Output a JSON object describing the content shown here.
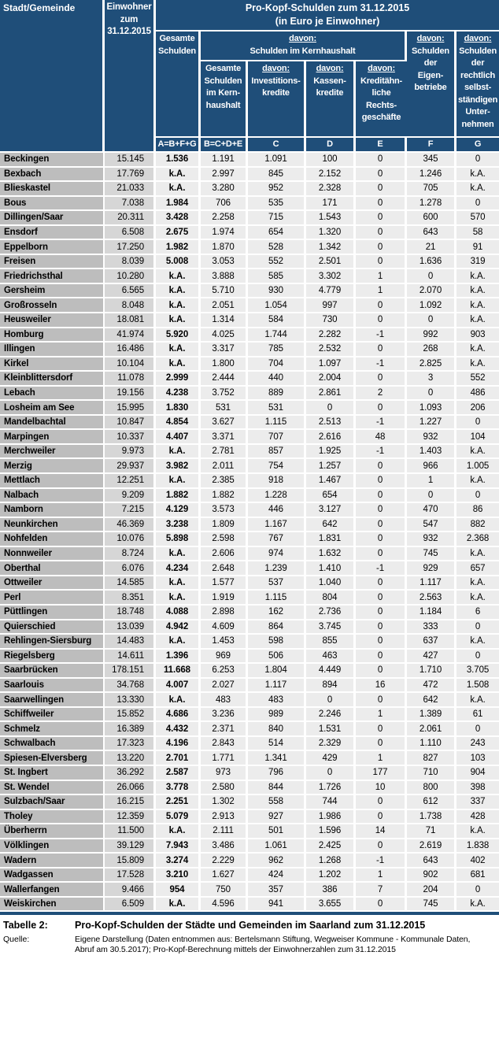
{
  "header": {
    "city": "Stadt/Gemeinde",
    "population": "Einwohner\nzum\n31.12.2015",
    "main_title": "Pro-Kopf-Schulden zum 31.12.2015",
    "main_subtitle": "(in Euro je Einwohner)",
    "davon": "davon:",
    "total": "Gesamte\nSchulden",
    "kernhaushalt_group": "Schulden im Kernhaushalt",
    "kern_total": "Gesamte\nSchulden\nim Kern-\nhaushalt",
    "invest": "Investitions-\nkredite",
    "kassen": "Kassen-\nkredite",
    "kreditaehnlich": "Kreditähn-\nliche Rechts-\ngeschäfte",
    "eigenbetriebe": "Schulden\nder\nEigen-\nbetriebe",
    "selbststaendig": "Schulden\nder\nrechtlich\nselbst-\nständigen\nUnter-\nnehmen",
    "formulas": [
      "A=B+F+G",
      "B=C+D+E",
      "C",
      "D",
      "E",
      "F",
      "G"
    ]
  },
  "rows": [
    {
      "name": "Beckingen",
      "population": "15.145",
      "values": [
        "1.536",
        "1.191",
        "1.091",
        "100",
        "0",
        "345",
        "0"
      ]
    },
    {
      "name": "Bexbach",
      "population": "17.769",
      "values": [
        "k.A.",
        "2.997",
        "845",
        "2.152",
        "0",
        "1.246",
        "k.A."
      ]
    },
    {
      "name": "Blieskastel",
      "population": "21.033",
      "values": [
        "k.A.",
        "3.280",
        "952",
        "2.328",
        "0",
        "705",
        "k.A."
      ]
    },
    {
      "name": "Bous",
      "population": "7.038",
      "values": [
        "1.984",
        "706",
        "535",
        "171",
        "0",
        "1.278",
        "0"
      ]
    },
    {
      "name": "Dillingen/Saar",
      "population": "20.311",
      "values": [
        "3.428",
        "2.258",
        "715",
        "1.543",
        "0",
        "600",
        "570"
      ]
    },
    {
      "name": "Ensdorf",
      "population": "6.508",
      "values": [
        "2.675",
        "1.974",
        "654",
        "1.320",
        "0",
        "643",
        "58"
      ]
    },
    {
      "name": "Eppelborn",
      "population": "17.250",
      "values": [
        "1.982",
        "1.870",
        "528",
        "1.342",
        "0",
        "21",
        "91"
      ]
    },
    {
      "name": "Freisen",
      "population": "8.039",
      "values": [
        "5.008",
        "3.053",
        "552",
        "2.501",
        "0",
        "1.636",
        "319"
      ]
    },
    {
      "name": "Friedrichsthal",
      "population": "10.280",
      "values": [
        "k.A.",
        "3.888",
        "585",
        "3.302",
        "1",
        "0",
        "k.A."
      ]
    },
    {
      "name": "Gersheim",
      "population": "6.565",
      "values": [
        "k.A.",
        "5.710",
        "930",
        "4.779",
        "1",
        "2.070",
        "k.A."
      ]
    },
    {
      "name": "Großrosseln",
      "population": "8.048",
      "values": [
        "k.A.",
        "2.051",
        "1.054",
        "997",
        "0",
        "1.092",
        "k.A."
      ]
    },
    {
      "name": "Heusweiler",
      "population": "18.081",
      "values": [
        "k.A.",
        "1.314",
        "584",
        "730",
        "0",
        "0",
        "k.A."
      ]
    },
    {
      "name": "Homburg",
      "population": "41.974",
      "values": [
        "5.920",
        "4.025",
        "1.744",
        "2.282",
        "-1",
        "992",
        "903"
      ]
    },
    {
      "name": "Illingen",
      "population": "16.486",
      "values": [
        "k.A.",
        "3.317",
        "785",
        "2.532",
        "0",
        "268",
        "k.A."
      ]
    },
    {
      "name": "Kirkel",
      "population": "10.104",
      "values": [
        "k.A.",
        "1.800",
        "704",
        "1.097",
        "-1",
        "2.825",
        "k.A."
      ]
    },
    {
      "name": "Kleinblittersdorf",
      "population": "11.078",
      "values": [
        "2.999",
        "2.444",
        "440",
        "2.004",
        "0",
        "3",
        "552"
      ]
    },
    {
      "name": "Lebach",
      "population": "19.156",
      "values": [
        "4.238",
        "3.752",
        "889",
        "2.861",
        "2",
        "0",
        "486"
      ]
    },
    {
      "name": "Losheim am See",
      "population": "15.995",
      "values": [
        "1.830",
        "531",
        "531",
        "0",
        "0",
        "1.093",
        "206"
      ]
    },
    {
      "name": "Mandelbachtal",
      "population": "10.847",
      "values": [
        "4.854",
        "3.627",
        "1.115",
        "2.513",
        "-1",
        "1.227",
        "0"
      ]
    },
    {
      "name": "Marpingen",
      "population": "10.337",
      "values": [
        "4.407",
        "3.371",
        "707",
        "2.616",
        "48",
        "932",
        "104"
      ]
    },
    {
      "name": "Merchweiler",
      "population": "9.973",
      "values": [
        "k.A.",
        "2.781",
        "857",
        "1.925",
        "-1",
        "1.403",
        "k.A."
      ]
    },
    {
      "name": "Merzig",
      "population": "29.937",
      "values": [
        "3.982",
        "2.011",
        "754",
        "1.257",
        "0",
        "966",
        "1.005"
      ]
    },
    {
      "name": "Mettlach",
      "population": "12.251",
      "values": [
        "k.A.",
        "2.385",
        "918",
        "1.467",
        "0",
        "1",
        "k.A."
      ]
    },
    {
      "name": "Nalbach",
      "population": "9.209",
      "values": [
        "1.882",
        "1.882",
        "1.228",
        "654",
        "0",
        "0",
        "0"
      ]
    },
    {
      "name": "Namborn",
      "population": "7.215",
      "values": [
        "4.129",
        "3.573",
        "446",
        "3.127",
        "0",
        "470",
        "86"
      ]
    },
    {
      "name": "Neunkirchen",
      "population": "46.369",
      "values": [
        "3.238",
        "1.809",
        "1.167",
        "642",
        "0",
        "547",
        "882"
      ]
    },
    {
      "name": "Nohfelden",
      "population": "10.076",
      "values": [
        "5.898",
        "2.598",
        "767",
        "1.831",
        "0",
        "932",
        "2.368"
      ]
    },
    {
      "name": "Nonnweiler",
      "population": "8.724",
      "values": [
        "k.A.",
        "2.606",
        "974",
        "1.632",
        "0",
        "745",
        "k.A."
      ]
    },
    {
      "name": "Oberthal",
      "population": "6.076",
      "values": [
        "4.234",
        "2.648",
        "1.239",
        "1.410",
        "-1",
        "929",
        "657"
      ]
    },
    {
      "name": "Ottweiler",
      "population": "14.585",
      "values": [
        "k.A.",
        "1.577",
        "537",
        "1.040",
        "0",
        "1.117",
        "k.A."
      ]
    },
    {
      "name": "Perl",
      "population": "8.351",
      "values": [
        "k.A.",
        "1.919",
        "1.115",
        "804",
        "0",
        "2.563",
        "k.A."
      ]
    },
    {
      "name": "Püttlingen",
      "population": "18.748",
      "values": [
        "4.088",
        "2.898",
        "162",
        "2.736",
        "0",
        "1.184",
        "6"
      ]
    },
    {
      "name": "Quierschied",
      "population": "13.039",
      "values": [
        "4.942",
        "4.609",
        "864",
        "3.745",
        "0",
        "333",
        "0"
      ]
    },
    {
      "name": "Rehlingen-Siersburg",
      "population": "14.483",
      "values": [
        "k.A.",
        "1.453",
        "598",
        "855",
        "0",
        "637",
        "k.A."
      ]
    },
    {
      "name": "Riegelsberg",
      "population": "14.611",
      "values": [
        "1.396",
        "969",
        "506",
        "463",
        "0",
        "427",
        "0"
      ]
    },
    {
      "name": "Saarbrücken",
      "population": "178.151",
      "values": [
        "11.668",
        "6.253",
        "1.804",
        "4.449",
        "0",
        "1.710",
        "3.705"
      ]
    },
    {
      "name": "Saarlouis",
      "population": "34.768",
      "values": [
        "4.007",
        "2.027",
        "1.117",
        "894",
        "16",
        "472",
        "1.508"
      ]
    },
    {
      "name": "Saarwellingen",
      "population": "13.330",
      "values": [
        "k.A.",
        "483",
        "483",
        "0",
        "0",
        "642",
        "k.A."
      ]
    },
    {
      "name": "Schiffweiler",
      "population": "15.852",
      "values": [
        "4.686",
        "3.236",
        "989",
        "2.246",
        "1",
        "1.389",
        "61"
      ]
    },
    {
      "name": "Schmelz",
      "population": "16.389",
      "values": [
        "4.432",
        "2.371",
        "840",
        "1.531",
        "0",
        "2.061",
        "0"
      ]
    },
    {
      "name": "Schwalbach",
      "population": "17.323",
      "values": [
        "4.196",
        "2.843",
        "514",
        "2.329",
        "0",
        "1.110",
        "243"
      ]
    },
    {
      "name": "Spiesen-Elversberg",
      "population": "13.220",
      "values": [
        "2.701",
        "1.771",
        "1.341",
        "429",
        "1",
        "827",
        "103"
      ]
    },
    {
      "name": "St. Ingbert",
      "population": "36.292",
      "values": [
        "2.587",
        "973",
        "796",
        "0",
        "177",
        "710",
        "904"
      ]
    },
    {
      "name": "St. Wendel",
      "population": "26.066",
      "values": [
        "3.778",
        "2.580",
        "844",
        "1.726",
        "10",
        "800",
        "398"
      ]
    },
    {
      "name": "Sulzbach/Saar",
      "population": "16.215",
      "values": [
        "2.251",
        "1.302",
        "558",
        "744",
        "0",
        "612",
        "337"
      ]
    },
    {
      "name": "Tholey",
      "population": "12.359",
      "values": [
        "5.079",
        "2.913",
        "927",
        "1.986",
        "0",
        "1.738",
        "428"
      ]
    },
    {
      "name": "Überherrn",
      "population": "11.500",
      "values": [
        "k.A.",
        "2.111",
        "501",
        "1.596",
        "14",
        "71",
        "k.A."
      ]
    },
    {
      "name": "Völklingen",
      "population": "39.129",
      "values": [
        "7.943",
        "3.486",
        "1.061",
        "2.425",
        "0",
        "2.619",
        "1.838"
      ]
    },
    {
      "name": "Wadern",
      "population": "15.809",
      "values": [
        "3.274",
        "2.229",
        "962",
        "1.268",
        "-1",
        "643",
        "402"
      ]
    },
    {
      "name": "Wadgassen",
      "population": "17.528",
      "values": [
        "3.210",
        "1.627",
        "424",
        "1.202",
        "1",
        "902",
        "681"
      ]
    },
    {
      "name": "Wallerfangen",
      "population": "9.466",
      "values": [
        "954",
        "750",
        "357",
        "386",
        "7",
        "204",
        "0"
      ]
    },
    {
      "name": "Weiskirchen",
      "population": "6.509",
      "values": [
        "k.A.",
        "4.596",
        "941",
        "3.655",
        "0",
        "745",
        "k.A."
      ]
    }
  ],
  "footer": {
    "table_label": "Tabelle 2:",
    "table_title": "Pro-Kopf-Schulden der Städte und Gemeinden im Saarland zum 31.12.2015",
    "source_label": "Quelle:",
    "source_text": "Eigene Darstellung (Daten entnommen aus: Bertelsmann Stiftung, Wegweiser Kommune - Kommunale Daten,\nAbruf am 30.5.2017); Pro-Kopf-Berechnung mittels der Einwohnerzahlen zum 31.12.2015"
  },
  "colors": {
    "header_bg": "#1f4e79",
    "city_col_bg": "#bdbdbd",
    "population_col_bg": "#d6d6d6",
    "value_col_bg": "#ececec",
    "separator": "#ffffff"
  }
}
